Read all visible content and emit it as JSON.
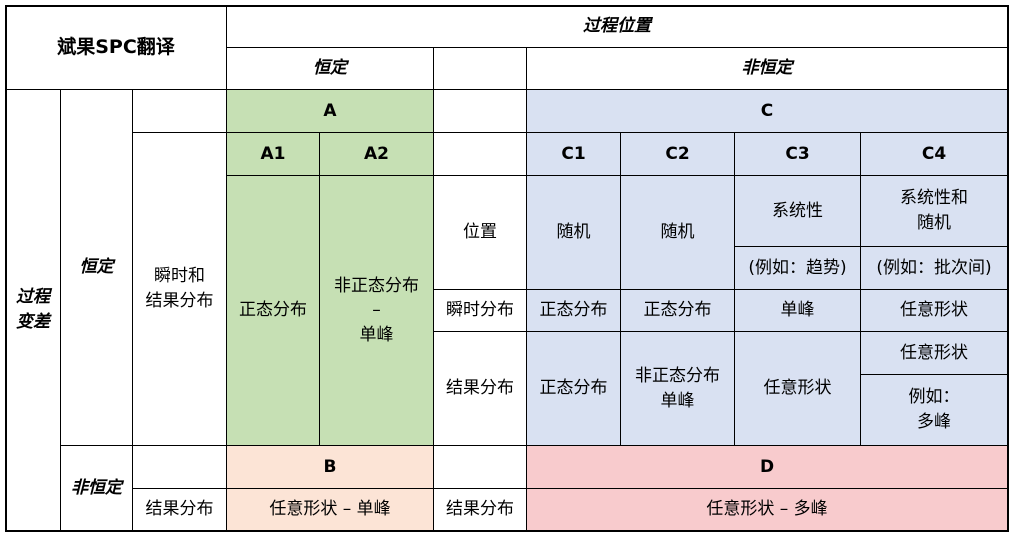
{
  "title": "斌果SPC翻译",
  "process_location": "过程位置",
  "process_variation": "过程变差",
  "constant": "恒定",
  "non_constant": "非恒定",
  "A": "A",
  "A1": "A1",
  "A2": "A2",
  "B": "B",
  "C": "C",
  "C1": "C1",
  "C2": "C2",
  "C3": "C3",
  "C4": "C4",
  "D": "D",
  "inst_and_result": "瞬时和\n结果分布",
  "location": "位置",
  "inst_dist": "瞬时分布",
  "result_dist": "结果分布",
  "normal": "正态分布",
  "nonnormal_unimodal_a2": "非正态分布\n–\n单峰",
  "nonnormal_unimodal_c2": "非正态分布\n单峰",
  "random": "随机",
  "systematic": "系统性",
  "eg_trend": "(例如：趋势)",
  "systematic_random": "系统性和\n随机",
  "eg_batch": "(例如：批次间)",
  "unimodal": "单峰",
  "any_shape": "任意形状",
  "eg_multimodal": "例如：\n多峰",
  "any_unimodal": "任意形状 – 单峰",
  "any_multimodal": "任意形状 – 多峰",
  "colors": {
    "A": "#c6e0b4",
    "C": "#d9e1f2",
    "B": "#fce4d6",
    "D": "#f8cbcd"
  }
}
